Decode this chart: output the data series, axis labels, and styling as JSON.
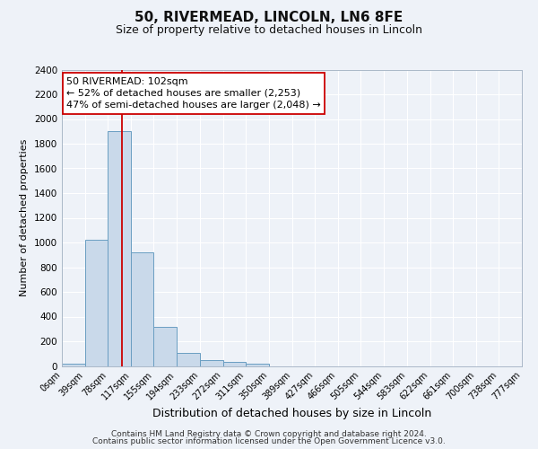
{
  "title": "50, RIVERMEAD, LINCOLN, LN6 8FE",
  "subtitle": "Size of property relative to detached houses in Lincoln",
  "xlabel": "Distribution of detached houses by size in Lincoln",
  "ylabel": "Number of detached properties",
  "footer_line1": "Contains HM Land Registry data © Crown copyright and database right 2024.",
  "footer_line2": "Contains public sector information licensed under the Open Government Licence v3.0.",
  "annotation_title": "50 RIVERMEAD: 102sqm",
  "annotation_line1": "← 52% of detached houses are smaller (2,253)",
  "annotation_line2": "47% of semi-detached houses are larger (2,048) →",
  "bar_edges": [
    0,
    39,
    78,
    117,
    155,
    194,
    233,
    272,
    311,
    350,
    389,
    427,
    466,
    505,
    544,
    583,
    622,
    661,
    700,
    738,
    777
  ],
  "bar_heights": [
    20,
    1020,
    1900,
    920,
    320,
    105,
    50,
    30,
    20,
    0,
    0,
    0,
    0,
    0,
    0,
    0,
    0,
    0,
    0,
    0
  ],
  "bar_color": "#c9d9ea",
  "bar_edge_color": "#6a9ec2",
  "red_line_x": 102,
  "ylim": [
    0,
    2400
  ],
  "yticks": [
    0,
    200,
    400,
    600,
    800,
    1000,
    1200,
    1400,
    1600,
    1800,
    2000,
    2200,
    2400
  ],
  "bg_color": "#eef2f8",
  "grid_color": "#d8dfe8",
  "tick_labels": [
    "0sqm",
    "39sqm",
    "78sqm",
    "117sqm",
    "155sqm",
    "194sqm",
    "233sqm",
    "272sqm",
    "311sqm",
    "350sqm",
    "389sqm",
    "427sqm",
    "466sqm",
    "505sqm",
    "544sqm",
    "583sqm",
    "622sqm",
    "661sqm",
    "700sqm",
    "738sqm",
    "777sqm"
  ],
  "title_fontsize": 11,
  "subtitle_fontsize": 9,
  "xlabel_fontsize": 9,
  "ylabel_fontsize": 8,
  "tick_fontsize": 7,
  "annotation_fontsize": 8,
  "footer_fontsize": 6.5
}
